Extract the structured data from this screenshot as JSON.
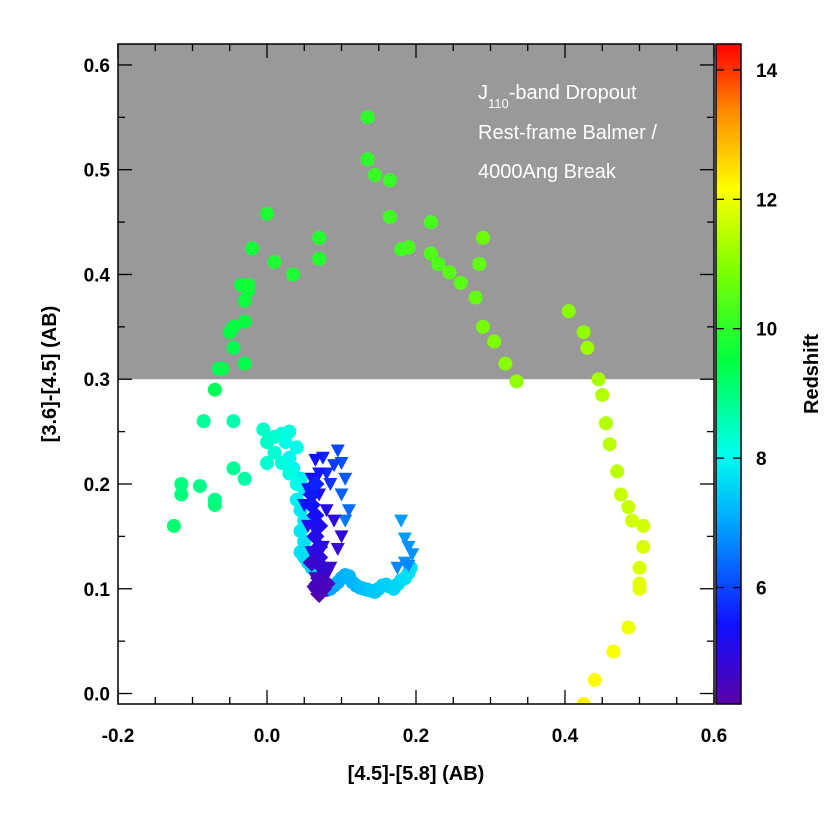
{
  "chart_data": {
    "type": "scatter",
    "xlabel": "[4.5]-[5.8] (AB)",
    "ylabel": "[3.6]-[4.5] (AB)",
    "xlim": [
      -0.2,
      0.6
    ],
    "ylim": [
      -0.01,
      0.62
    ],
    "x_ticks": [
      "-0.2",
      "0.0",
      "0.2",
      "0.4",
      "0.6"
    ],
    "x_tick_values": [
      -0.2,
      0.0,
      0.2,
      0.4,
      0.6
    ],
    "y_ticks": [
      "0.0",
      "0.1",
      "0.2",
      "0.3",
      "0.4",
      "0.5",
      "0.6"
    ],
    "y_tick_values": [
      0.0,
      0.1,
      0.2,
      0.3,
      0.4,
      0.5,
      0.6
    ],
    "shaded_region": {
      "y_from": 0.3,
      "y_to": 0.62,
      "color": "#999999"
    },
    "annotation": {
      "line1_prefix": "J",
      "line1_subscript": "110",
      "line1_suffix": "-band Dropout",
      "line2": "Rest-frame Balmer /",
      "line3": "4000Ang Break"
    },
    "colorbar": {
      "label": "Redshift",
      "range": [
        4.2,
        14.4
      ],
      "ticks": [
        "6",
        "8",
        "10",
        "12",
        "14"
      ],
      "tick_values": [
        6,
        8,
        10,
        12,
        14
      ]
    },
    "series": [
      {
        "name": "circles",
        "marker": "circle",
        "points": [
          {
            "x": 0.07,
            "y": 0.098,
            "z": 4.3
          },
          {
            "x": 0.075,
            "y": 0.1,
            "z": 4.4
          },
          {
            "x": 0.065,
            "y": 0.102,
            "z": 4.5
          },
          {
            "x": 0.08,
            "y": 0.099,
            "z": 4.6
          },
          {
            "x": 0.085,
            "y": 0.1,
            "z": 7.0
          },
          {
            "x": 0.09,
            "y": 0.103,
            "z": 7.0
          },
          {
            "x": 0.095,
            "y": 0.106,
            "z": 7.1
          },
          {
            "x": 0.1,
            "y": 0.11,
            "z": 7.1
          },
          {
            "x": 0.105,
            "y": 0.113,
            "z": 7.1
          },
          {
            "x": 0.11,
            "y": 0.112,
            "z": 7.2
          },
          {
            "x": 0.115,
            "y": 0.106,
            "z": 7.2
          },
          {
            "x": 0.12,
            "y": 0.103,
            "z": 7.2
          },
          {
            "x": 0.125,
            "y": 0.101,
            "z": 7.3
          },
          {
            "x": 0.13,
            "y": 0.1,
            "z": 7.3
          },
          {
            "x": 0.135,
            "y": 0.099,
            "z": 7.3
          },
          {
            "x": 0.14,
            "y": 0.098,
            "z": 7.4
          },
          {
            "x": 0.145,
            "y": 0.097,
            "z": 7.4
          },
          {
            "x": 0.15,
            "y": 0.1,
            "z": 7.4
          },
          {
            "x": 0.155,
            "y": 0.103,
            "z": 7.5
          },
          {
            "x": 0.16,
            "y": 0.104,
            "z": 7.5
          },
          {
            "x": 0.165,
            "y": 0.102,
            "z": 7.5
          },
          {
            "x": 0.17,
            "y": 0.1,
            "z": 7.6
          },
          {
            "x": 0.175,
            "y": 0.104,
            "z": 7.6
          },
          {
            "x": 0.18,
            "y": 0.108,
            "z": 7.6
          },
          {
            "x": 0.185,
            "y": 0.11,
            "z": 7.7
          },
          {
            "x": 0.19,
            "y": 0.115,
            "z": 7.7
          },
          {
            "x": 0.193,
            "y": 0.12,
            "z": 7.7
          },
          {
            "x": 0.06,
            "y": 0.12,
            "z": 7.6
          },
          {
            "x": 0.055,
            "y": 0.125,
            "z": 7.6
          },
          {
            "x": 0.05,
            "y": 0.13,
            "z": 7.7
          },
          {
            "x": 0.045,
            "y": 0.135,
            "z": 7.7
          },
          {
            "x": 0.05,
            "y": 0.145,
            "z": 7.7
          },
          {
            "x": 0.045,
            "y": 0.155,
            "z": 7.8
          },
          {
            "x": 0.05,
            "y": 0.165,
            "z": 7.8
          },
          {
            "x": 0.045,
            "y": 0.175,
            "z": 7.8
          },
          {
            "x": 0.04,
            "y": 0.185,
            "z": 7.9
          },
          {
            "x": 0.05,
            "y": 0.195,
            "z": 7.9
          },
          {
            "x": 0.045,
            "y": 0.205,
            "z": 7.9
          },
          {
            "x": 0.035,
            "y": 0.215,
            "z": 8.0
          },
          {
            "x": 0.03,
            "y": 0.225,
            "z": 8.0
          },
          {
            "x": 0.04,
            "y": 0.235,
            "z": 8.1
          },
          {
            "x": 0.025,
            "y": 0.24,
            "z": 8.1
          },
          {
            "x": 0.02,
            "y": 0.248,
            "z": 8.2
          },
          {
            "x": 0.03,
            "y": 0.25,
            "z": 8.2
          },
          {
            "x": 0.01,
            "y": 0.245,
            "z": 8.3
          },
          {
            "x": 0.0,
            "y": 0.24,
            "z": 8.4
          },
          {
            "x": -0.005,
            "y": 0.252,
            "z": 8.4
          },
          {
            "x": 0.01,
            "y": 0.23,
            "z": 8.3
          },
          {
            "x": 0.02,
            "y": 0.22,
            "z": 8.2
          },
          {
            "x": 0.03,
            "y": 0.21,
            "z": 8.2
          },
          {
            "x": 0.04,
            "y": 0.2,
            "z": 8.1
          },
          {
            "x": 0.0,
            "y": 0.22,
            "z": 8.3
          },
          {
            "x": -0.045,
            "y": 0.26,
            "z": 8.6
          },
          {
            "x": -0.085,
            "y": 0.26,
            "z": 8.8
          },
          {
            "x": -0.03,
            "y": 0.205,
            "z": 8.7
          },
          {
            "x": -0.045,
            "y": 0.215,
            "z": 8.8
          },
          {
            "x": -0.07,
            "y": 0.185,
            "z": 8.9
          },
          {
            "x": -0.09,
            "y": 0.198,
            "z": 8.9
          },
          {
            "x": -0.115,
            "y": 0.2,
            "z": 9.0
          },
          {
            "x": -0.115,
            "y": 0.19,
            "z": 9.0
          },
          {
            "x": -0.125,
            "y": 0.16,
            "z": 9.1
          },
          {
            "x": -0.07,
            "y": 0.18,
            "z": 9.0
          },
          {
            "x": -0.07,
            "y": 0.29,
            "z": 9.3
          },
          {
            "x": -0.065,
            "y": 0.31,
            "z": 9.3
          },
          {
            "x": -0.06,
            "y": 0.31,
            "z": 9.4
          },
          {
            "x": -0.03,
            "y": 0.315,
            "z": 9.4
          },
          {
            "x": -0.045,
            "y": 0.33,
            "z": 9.4
          },
          {
            "x": -0.05,
            "y": 0.345,
            "z": 9.5
          },
          {
            "x": -0.045,
            "y": 0.35,
            "z": 9.5
          },
          {
            "x": -0.03,
            "y": 0.355,
            "z": 9.5
          },
          {
            "x": -0.03,
            "y": 0.375,
            "z": 9.6
          },
          {
            "x": -0.025,
            "y": 0.385,
            "z": 9.6
          },
          {
            "x": -0.035,
            "y": 0.39,
            "z": 9.6
          },
          {
            "x": -0.025,
            "y": 0.39,
            "z": 9.7
          },
          {
            "x": -0.02,
            "y": 0.425,
            "z": 9.7
          },
          {
            "x": 0.0,
            "y": 0.458,
            "z": 9.8
          },
          {
            "x": 0.01,
            "y": 0.412,
            "z": 9.8
          },
          {
            "x": 0.035,
            "y": 0.4,
            "z": 9.8
          },
          {
            "x": 0.07,
            "y": 0.415,
            "z": 9.9
          },
          {
            "x": 0.07,
            "y": 0.435,
            "z": 9.9
          },
          {
            "x": 0.135,
            "y": 0.55,
            "z": 10.0
          },
          {
            "x": 0.135,
            "y": 0.51,
            "z": 10.0
          },
          {
            "x": 0.145,
            "y": 0.495,
            "z": 10.1
          },
          {
            "x": 0.165,
            "y": 0.49,
            "z": 10.1
          },
          {
            "x": 0.165,
            "y": 0.455,
            "z": 10.2
          },
          {
            "x": 0.18,
            "y": 0.424,
            "z": 10.2
          },
          {
            "x": 0.19,
            "y": 0.426,
            "z": 10.3
          },
          {
            "x": 0.22,
            "y": 0.45,
            "z": 10.3
          },
          {
            "x": 0.22,
            "y": 0.42,
            "z": 10.4
          },
          {
            "x": 0.23,
            "y": 0.41,
            "z": 10.4
          },
          {
            "x": 0.245,
            "y": 0.402,
            "z": 10.5
          },
          {
            "x": 0.26,
            "y": 0.392,
            "z": 10.5
          },
          {
            "x": 0.28,
            "y": 0.378,
            "z": 10.6
          },
          {
            "x": 0.285,
            "y": 0.41,
            "z": 10.6
          },
          {
            "x": 0.29,
            "y": 0.435,
            "z": 10.7
          },
          {
            "x": 0.29,
            "y": 0.35,
            "z": 10.8
          },
          {
            "x": 0.305,
            "y": 0.336,
            "z": 10.9
          },
          {
            "x": 0.32,
            "y": 0.315,
            "z": 11.0
          },
          {
            "x": 0.335,
            "y": 0.298,
            "z": 11.1
          },
          {
            "x": 0.405,
            "y": 0.365,
            "z": 11.0
          },
          {
            "x": 0.425,
            "y": 0.345,
            "z": 11.1
          },
          {
            "x": 0.43,
            "y": 0.33,
            "z": 11.2
          },
          {
            "x": 0.445,
            "y": 0.3,
            "z": 11.3
          },
          {
            "x": 0.45,
            "y": 0.285,
            "z": 11.4
          },
          {
            "x": 0.455,
            "y": 0.258,
            "z": 11.4
          },
          {
            "x": 0.46,
            "y": 0.238,
            "z": 11.5
          },
          {
            "x": 0.47,
            "y": 0.212,
            "z": 11.5
          },
          {
            "x": 0.475,
            "y": 0.19,
            "z": 11.6
          },
          {
            "x": 0.485,
            "y": 0.178,
            "z": 11.6
          },
          {
            "x": 0.49,
            "y": 0.165,
            "z": 11.7
          },
          {
            "x": 0.505,
            "y": 0.16,
            "z": 11.7
          },
          {
            "x": 0.505,
            "y": 0.14,
            "z": 11.8
          },
          {
            "x": 0.5,
            "y": 0.12,
            "z": 11.8
          },
          {
            "x": 0.5,
            "y": 0.1,
            "z": 11.9
          },
          {
            "x": 0.5,
            "y": 0.105,
            "z": 11.9
          },
          {
            "x": 0.485,
            "y": 0.063,
            "z": 12.0
          },
          {
            "x": 0.465,
            "y": 0.04,
            "z": 12.1
          },
          {
            "x": 0.44,
            "y": 0.013,
            "z": 12.2
          },
          {
            "x": 0.425,
            "y": -0.01,
            "z": 12.3
          }
        ]
      },
      {
        "name": "triangles",
        "marker": "triangle-down",
        "points": [
          {
            "x": 0.18,
            "y": 0.165,
            "z": 6.9
          },
          {
            "x": 0.185,
            "y": 0.148,
            "z": 6.9
          },
          {
            "x": 0.19,
            "y": 0.14,
            "z": 6.8
          },
          {
            "x": 0.195,
            "y": 0.133,
            "z": 6.8
          },
          {
            "x": 0.185,
            "y": 0.125,
            "z": 6.8
          },
          {
            "x": 0.19,
            "y": 0.122,
            "z": 6.7
          },
          {
            "x": 0.175,
            "y": 0.12,
            "z": 6.7
          },
          {
            "x": 0.105,
            "y": 0.165,
            "z": 6.5
          },
          {
            "x": 0.11,
            "y": 0.175,
            "z": 6.4
          },
          {
            "x": 0.1,
            "y": 0.19,
            "z": 6.3
          },
          {
            "x": 0.105,
            "y": 0.205,
            "z": 6.2
          },
          {
            "x": 0.1,
            "y": 0.22,
            "z": 6.1
          },
          {
            "x": 0.095,
            "y": 0.232,
            "z": 6.0
          },
          {
            "x": 0.09,
            "y": 0.218,
            "z": 5.9
          },
          {
            "x": 0.085,
            "y": 0.2,
            "z": 5.8
          },
          {
            "x": 0.08,
            "y": 0.21,
            "z": 5.7
          },
          {
            "x": 0.075,
            "y": 0.225,
            "z": 5.6
          },
          {
            "x": 0.07,
            "y": 0.21,
            "z": 5.5
          },
          {
            "x": 0.065,
            "y": 0.223,
            "z": 5.4
          },
          {
            "x": 0.06,
            "y": 0.205,
            "z": 5.3
          },
          {
            "x": 0.07,
            "y": 0.19,
            "z": 5.2
          },
          {
            "x": 0.08,
            "y": 0.175,
            "z": 5.1
          },
          {
            "x": 0.09,
            "y": 0.165,
            "z": 5.0
          },
          {
            "x": 0.1,
            "y": 0.15,
            "z": 4.9
          },
          {
            "x": 0.095,
            "y": 0.138,
            "z": 4.8
          },
          {
            "x": 0.085,
            "y": 0.12,
            "z": 4.7
          },
          {
            "x": 0.08,
            "y": 0.113,
            "z": 4.6
          },
          {
            "x": 0.07,
            "y": 0.108,
            "z": 4.5
          },
          {
            "x": 0.065,
            "y": 0.11,
            "z": 4.5
          },
          {
            "x": 0.055,
            "y": 0.16,
            "z": 5.2
          },
          {
            "x": 0.05,
            "y": 0.18,
            "z": 5.4
          },
          {
            "x": 0.075,
            "y": 0.14,
            "z": 5.0
          },
          {
            "x": 0.07,
            "y": 0.12,
            "z": 4.8
          },
          {
            "x": 0.06,
            "y": 0.135,
            "z": 5.0
          },
          {
            "x": 0.055,
            "y": 0.195,
            "z": 5.5
          },
          {
            "x": 0.065,
            "y": 0.155,
            "z": 5.1
          }
        ]
      },
      {
        "name": "diamonds",
        "marker": "diamond",
        "points": [
          {
            "x": 0.07,
            "y": 0.095,
            "z": 4.3
          },
          {
            "x": 0.075,
            "y": 0.1,
            "z": 4.4
          },
          {
            "x": 0.065,
            "y": 0.102,
            "z": 4.5
          },
          {
            "x": 0.07,
            "y": 0.11,
            "z": 4.6
          },
          {
            "x": 0.075,
            "y": 0.12,
            "z": 4.8
          },
          {
            "x": 0.07,
            "y": 0.13,
            "z": 4.9
          },
          {
            "x": 0.07,
            "y": 0.14,
            "z": 5.0
          },
          {
            "x": 0.065,
            "y": 0.15,
            "z": 5.1
          },
          {
            "x": 0.07,
            "y": 0.16,
            "z": 5.2
          },
          {
            "x": 0.065,
            "y": 0.17,
            "z": 5.3
          },
          {
            "x": 0.06,
            "y": 0.18,
            "z": 5.4
          },
          {
            "x": 0.06,
            "y": 0.19,
            "z": 5.5
          },
          {
            "x": 0.065,
            "y": 0.2,
            "z": 5.6
          },
          {
            "x": 0.06,
            "y": 0.125,
            "z": 4.7
          },
          {
            "x": 0.08,
            "y": 0.105,
            "z": 4.5
          }
        ]
      }
    ]
  }
}
